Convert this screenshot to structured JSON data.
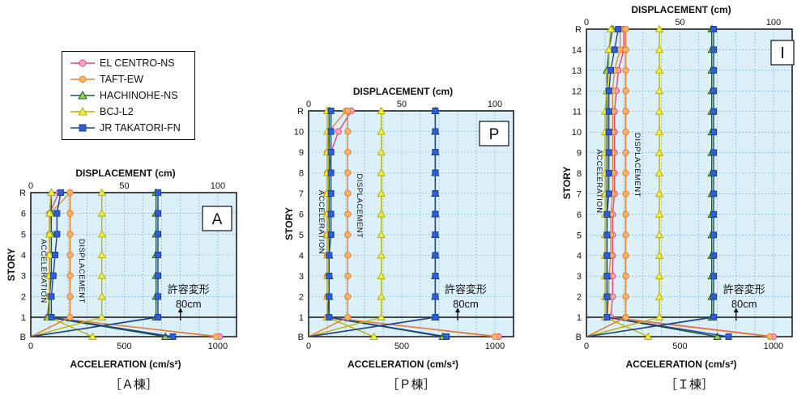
{
  "legend": [
    {
      "name": "EL CENTRO-NS",
      "color": "#e8457a",
      "fill": "#f6a9c2",
      "marker": "circle"
    },
    {
      "name": "TAFT-EW",
      "color": "#e8872b",
      "fill": "#f5b46a",
      "marker": "circle"
    },
    {
      "name": "HACHINOHE-NS",
      "color": "#1e5a2a",
      "fill": "#8fd14a",
      "marker": "triangle"
    },
    {
      "name": "BCJ-L2",
      "color": "#b9b400",
      "fill": "#f1ec4a",
      "marker": "triangle"
    },
    {
      "name": "JR TAKATORI-FN",
      "color": "#1f3f9a",
      "fill": "#2e5fd4",
      "marker": "square"
    }
  ],
  "colors": {
    "panel_bg": "#dcf0fa",
    "grid": "#6aa8c8",
    "frame": "#111111"
  },
  "chart_data": [
    {
      "type": "line",
      "id": "A",
      "panel_label": "A",
      "caption": "［Ａ棟］",
      "top_axis_title": "DISPLACEMENT (cm)",
      "bottom_axis_title": "ACCELERATION (cm/s²)",
      "ylabel": "STORY",
      "stories": [
        "B",
        "1",
        "2",
        "3",
        "4",
        "5",
        "6",
        "R"
      ],
      "xlim": [
        0,
        1100
      ],
      "top_ticks": [
        "0",
        "50",
        "100"
      ],
      "bottom_ticks": [
        "0",
        "500",
        "1000"
      ],
      "group_labels": {
        "acceleration": "ACCELERATION",
        "displacement": "DISPLACEMENT"
      },
      "allowable_text": [
        "許容変形",
        "80cm"
      ],
      "series": [
        {
          "name": "EL CENTRO-NS",
          "group": "acceleration",
          "values": [
            1010,
            90,
            100,
            100,
            100,
            100,
            100,
            150
          ]
        },
        {
          "name": "TAFT-EW",
          "group": "acceleration",
          "values": [
            990,
            100,
            100,
            100,
            100,
            100,
            105,
            210
          ]
        },
        {
          "name": "HACHINOHE-NS",
          "group": "acceleration",
          "values": [
            720,
            90,
            100,
            110,
            110,
            110,
            110,
            110
          ]
        },
        {
          "name": "BCJ-L2",
          "group": "acceleration",
          "values": [
            330,
            100,
            100,
            100,
            100,
            100,
            100,
            110
          ]
        },
        {
          "name": "JR TAKATORI-FN",
          "group": "acceleration",
          "values": [
            760,
            110,
            110,
            120,
            130,
            140,
            140,
            160
          ]
        },
        {
          "name": "EL CENTRO-NS",
          "group": "displacement",
          "values": [
            0,
            21,
            21,
            21,
            21,
            21,
            21,
            21
          ]
        },
        {
          "name": "TAFT-EW",
          "group": "displacement",
          "values": [
            0,
            21,
            21,
            21,
            21,
            21,
            21,
            21
          ]
        },
        {
          "name": "HACHINOHE-NS",
          "group": "displacement",
          "values": [
            0,
            67,
            67,
            67,
            67,
            67,
            67,
            67
          ]
        },
        {
          "name": "BCJ-L2",
          "group": "displacement",
          "values": [
            0,
            38,
            38,
            38,
            38,
            38,
            38,
            38
          ]
        },
        {
          "name": "JR TAKATORI-FN",
          "group": "displacement",
          "values": [
            0,
            68,
            68,
            68,
            68,
            68,
            68,
            68
          ]
        }
      ]
    },
    {
      "type": "line",
      "id": "P",
      "panel_label": "P",
      "caption": "［Ｐ棟］",
      "top_axis_title": "DISPLACEMENT (cm)",
      "bottom_axis_title": "ACCELERATION (cm/s²)",
      "ylabel": "STORY",
      "stories": [
        "B",
        "1",
        "2",
        "3",
        "4",
        "5",
        "6",
        "7",
        "8",
        "9",
        "10",
        "R"
      ],
      "xlim": [
        0,
        1100
      ],
      "top_ticks": [
        "0",
        "50",
        "100"
      ],
      "bottom_ticks": [
        "0",
        "500",
        "1000"
      ],
      "group_labels": {
        "acceleration": "ACCELERATION",
        "displacement": "DISPLACEMENT"
      },
      "allowable_text": [
        "許容変形",
        "80cm"
      ],
      "series": [
        {
          "name": "EL CENTRO-NS",
          "group": "acceleration",
          "values": [
            1020,
            100,
            110,
            110,
            110,
            110,
            110,
            110,
            110,
            120,
            160,
            230
          ]
        },
        {
          "name": "TAFT-EW",
          "group": "acceleration",
          "values": [
            1000,
            100,
            100,
            100,
            100,
            100,
            100,
            100,
            100,
            100,
            110,
            200
          ]
        },
        {
          "name": "HACHINOHE-NS",
          "group": "acceleration",
          "values": [
            720,
            100,
            110,
            110,
            110,
            110,
            110,
            110,
            110,
            110,
            110,
            110
          ]
        },
        {
          "name": "BCJ-L2",
          "group": "acceleration",
          "values": [
            350,
            100,
            100,
            100,
            100,
            100,
            100,
            100,
            100,
            100,
            100,
            100
          ]
        },
        {
          "name": "JR TAKATORI-FN",
          "group": "acceleration",
          "values": [
            740,
            110,
            110,
            110,
            110,
            120,
            120,
            120,
            120,
            120,
            120,
            120
          ]
        },
        {
          "name": "EL CENTRO-NS",
          "group": "displacement",
          "values": [
            0,
            21,
            21,
            21,
            21,
            21,
            21,
            21,
            21,
            21,
            21,
            21
          ]
        },
        {
          "name": "TAFT-EW",
          "group": "displacement",
          "values": [
            0,
            21,
            21,
            21,
            21,
            21,
            21,
            21,
            21,
            21,
            21,
            21
          ]
        },
        {
          "name": "HACHINOHE-NS",
          "group": "displacement",
          "values": [
            0,
            68,
            68,
            68,
            68,
            68,
            68,
            68,
            68,
            68,
            68,
            68
          ]
        },
        {
          "name": "BCJ-L2",
          "group": "displacement",
          "values": [
            0,
            39,
            39,
            39,
            39,
            39,
            39,
            39,
            39,
            39,
            39,
            39
          ]
        },
        {
          "name": "JR TAKATORI-FN",
          "group": "displacement",
          "values": [
            0,
            68,
            68,
            68,
            68,
            68,
            68,
            68,
            68,
            68,
            68,
            68
          ]
        }
      ]
    },
    {
      "type": "line",
      "id": "I",
      "panel_label": "Ⅰ",
      "caption": "［Ｉ棟］",
      "top_axis_title": "DISPLACEMENT (cm)",
      "bottom_axis_title": "ACCELERATION (cm/s²)",
      "ylabel": "STORY",
      "stories": [
        "B",
        "1",
        "2",
        "3",
        "4",
        "5",
        "6",
        "7",
        "8",
        "9",
        "10",
        "11",
        "12",
        "13",
        "14",
        "R"
      ],
      "xlim": [
        0,
        1100
      ],
      "top_ticks": [
        "0",
        "50",
        "100"
      ],
      "bottom_ticks": [
        "0",
        "500",
        "1000"
      ],
      "group_labels": {
        "acceleration": "ACCELERATION",
        "displacement": "DISPLACEMENT"
      },
      "allowable_text": [
        "許容変形",
        "80cm"
      ],
      "series": [
        {
          "name": "EL CENTRO-NS",
          "group": "acceleration",
          "values": [
            1000,
            130,
            140,
            140,
            140,
            140,
            140,
            150,
            150,
            150,
            150,
            150,
            160,
            170,
            200,
            200
          ]
        },
        {
          "name": "TAFT-EW",
          "group": "acceleration",
          "values": [
            980,
            110,
            120,
            120,
            130,
            130,
            130,
            140,
            140,
            140,
            140,
            140,
            140,
            150,
            180,
            180
          ]
        },
        {
          "name": "HACHINOHE-NS",
          "group": "acceleration",
          "values": [
            700,
            110,
            110,
            110,
            110,
            110,
            110,
            110,
            110,
            110,
            110,
            110,
            110,
            110,
            120,
            140
          ]
        },
        {
          "name": "BCJ-L2",
          "group": "acceleration",
          "values": [
            330,
            100,
            100,
            100,
            100,
            100,
            100,
            100,
            100,
            100,
            100,
            100,
            110,
            120,
            120,
            130
          ]
        },
        {
          "name": "JR TAKATORI-FN",
          "group": "acceleration",
          "values": [
            760,
            110,
            110,
            110,
            110,
            110,
            110,
            120,
            120,
            120,
            120,
            120,
            120,
            130,
            150,
            170
          ]
        },
        {
          "name": "EL CENTRO-NS",
          "group": "displacement",
          "values": [
            0,
            21,
            21,
            21,
            21,
            21,
            21,
            21,
            21,
            21,
            21,
            21,
            21,
            21,
            21,
            21
          ]
        },
        {
          "name": "TAFT-EW",
          "group": "displacement",
          "values": [
            0,
            21,
            21,
            21,
            21,
            21,
            21,
            21,
            21,
            21,
            21,
            21,
            21,
            21,
            21,
            21
          ]
        },
        {
          "name": "HACHINOHE-NS",
          "group": "displacement",
          "values": [
            0,
            67,
            67,
            67,
            67,
            67,
            67,
            67,
            67,
            67,
            67,
            67,
            67,
            67,
            67,
            67
          ]
        },
        {
          "name": "BCJ-L2",
          "group": "displacement",
          "values": [
            0,
            39,
            39,
            39,
            39,
            39,
            39,
            39,
            39,
            39,
            39,
            39,
            39,
            39,
            39,
            39
          ]
        },
        {
          "name": "JR TAKATORI-FN",
          "group": "displacement",
          "values": [
            0,
            68,
            68,
            68,
            68,
            68,
            68,
            68,
            68,
            68,
            68,
            68,
            68,
            68,
            68,
            68
          ]
        }
      ]
    }
  ]
}
